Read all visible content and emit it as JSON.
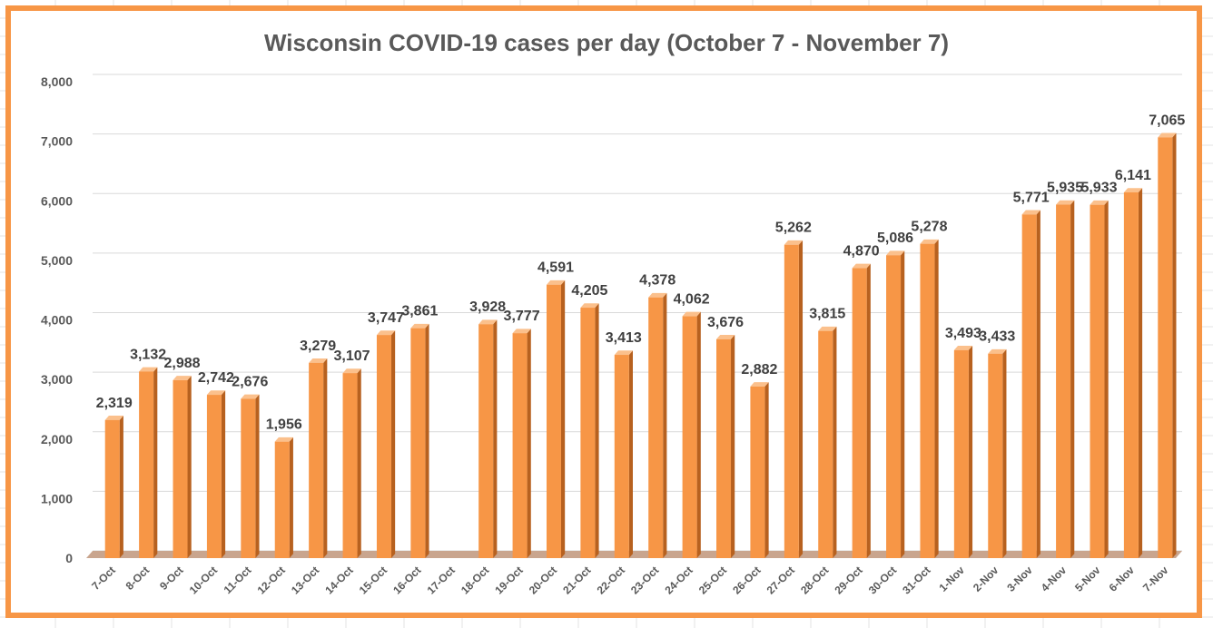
{
  "chart_data": {
    "type": "bar",
    "title": "Wisconsin COVID-19 cases per day (October 7 - November 7)",
    "xlabel": "",
    "ylabel": "",
    "ylim": [
      0,
      8000
    ],
    "yticks": [
      "0",
      "1,000",
      "2,000",
      "3,000",
      "4,000",
      "5,000",
      "6,000",
      "7,000",
      "8,000"
    ],
    "grid": true,
    "legend": "none",
    "bar_color": "#f79646",
    "categories": [
      "7-Oct",
      "8-Oct",
      "9-Oct",
      "10-Oct",
      "11-Oct",
      "12-Oct",
      "13-Oct",
      "14-Oct",
      "15-Oct",
      "16-Oct",
      "17-Oct",
      "18-Oct",
      "19-Oct",
      "20-Oct",
      "21-Oct",
      "22-Oct",
      "23-Oct",
      "24-Oct",
      "25-Oct",
      "26-Oct",
      "27-Oct",
      "28-Oct",
      "29-Oct",
      "30-Oct",
      "31-Oct",
      "1-Nov",
      "2-Nov",
      "3-Nov",
      "4-Nov",
      "5-Nov",
      "6-Nov",
      "7-Nov"
    ],
    "values": [
      2319,
      3132,
      2988,
      2742,
      2676,
      1956,
      3279,
      3107,
      3747,
      3861,
      null,
      3928,
      3777,
      4591,
      4205,
      3413,
      4378,
      4062,
      3676,
      2882,
      5262,
      3815,
      4870,
      5086,
      5278,
      3493,
      3433,
      5771,
      5935,
      5933,
      6141,
      7065
    ],
    "data_labels": [
      "2,319",
      "3,132",
      "2,988",
      "2,742",
      "2,676",
      "1,956",
      "3,279",
      "3,107",
      "3,747",
      "3,861",
      "",
      "3,928",
      "3,777",
      "4,591",
      "4,205",
      "3,413",
      "4,378",
      "4,062",
      "3,676",
      "2,882",
      "5,262",
      "3,815",
      "4,870",
      "5,086",
      "5,278",
      "3,493",
      "3,433",
      "5,771",
      "5,935",
      "5,933",
      "6,141",
      "7,065"
    ]
  }
}
